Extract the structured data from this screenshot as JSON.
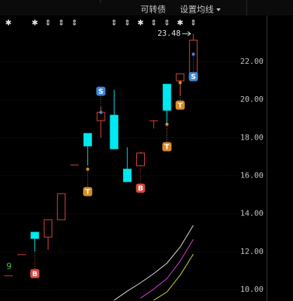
{
  "toolbar": {
    "convertible": "可转债",
    "ma_settings": "设置均线"
  },
  "chart_data": {
    "type": "candlestick",
    "open": [
      10.74,
      11.85,
      13.03,
      12.77,
      13.69,
      16.57,
      18.23,
      18.9,
      19.19,
      16.35,
      16.53,
      18.9,
      20.82,
      21.0,
      21.04
    ],
    "high": [
      10.74,
      11.85,
      13.03,
      13.7,
      15.06,
      16.57,
      18.23,
      19.64,
      20.52,
      17.5,
      17.27,
      18.9,
      20.82,
      21.37,
      23.48
    ],
    "low": [
      10.74,
      11.85,
      12.03,
      12.1,
      13.69,
      16.57,
      16.53,
      18.01,
      17.42,
      15.69,
      16.53,
      18.49,
      18.71,
      20.2,
      21.04
    ],
    "close": [
      10.74,
      11.85,
      12.7,
      13.69,
      15.06,
      16.57,
      17.57,
      19.34,
      17.42,
      15.69,
      17.2,
      18.9,
      19.45,
      21.37,
      23.14
    ],
    "up_color": "#e8483c",
    "down_color": "#00e8f0",
    "top_markers": [
      "✱",
      null,
      "✱",
      "⇕",
      "⇕",
      "⇕",
      null,
      null,
      "⇕",
      "⇕",
      "✱",
      "⇕",
      "⇕",
      "✱",
      "⇕"
    ],
    "signals": [
      null,
      null,
      {
        "label": "B",
        "price": null,
        "position": "below",
        "color": "#d9473d"
      },
      null,
      null,
      null,
      {
        "label": "T",
        "price": 16.35,
        "position": "below",
        "color": "#d98a26"
      },
      {
        "label": "S",
        "price": 19.34,
        "position": "above",
        "color": "#3f86d8"
      },
      null,
      null,
      {
        "label": "B",
        "price": null,
        "position": "below",
        "color": "#d9473d"
      },
      null,
      {
        "label": "T",
        "price": 18.71,
        "position": "below",
        "color": "#d98a26"
      },
      {
        "label": "T",
        "price": 20.9,
        "position": "below",
        "color": "#d98a26"
      },
      {
        "label": "S",
        "price": 22.4,
        "position": "below",
        "color": "#3f86d8"
      }
    ],
    "annotation": "9",
    "annotation_color": "#3ccf3c",
    "ma_series": [
      {
        "color": "#e8e8e8",
        "values": [
          null,
          null,
          null,
          null,
          null,
          null,
          null,
          null,
          9.45,
          9.93,
          10.37,
          10.85,
          11.4,
          12.25,
          13.4
        ]
      },
      {
        "color": "#e040e0",
        "values": [
          null,
          null,
          null,
          null,
          null,
          null,
          null,
          null,
          null,
          null,
          9.56,
          10.04,
          10.59,
          11.51,
          12.66
        ]
      },
      {
        "color": "#e0e040",
        "values": [
          null,
          null,
          null,
          null,
          null,
          null,
          null,
          null,
          null,
          null,
          null,
          9.45,
          9.89,
          10.77,
          11.88
        ]
      }
    ],
    "ylim": [
      9.41,
      24.44
    ],
    "yticks": [
      {
        "value": 10,
        "label": "10.00"
      },
      {
        "value": 12,
        "label": "12.00"
      },
      {
        "value": 14,
        "label": "14.00"
      },
      {
        "value": 16,
        "label": "16.00"
      },
      {
        "value": 18,
        "label": "18.00"
      },
      {
        "value": 20,
        "label": "20.00"
      },
      {
        "value": 22,
        "label": "22.00"
      }
    ],
    "grid": true
  }
}
